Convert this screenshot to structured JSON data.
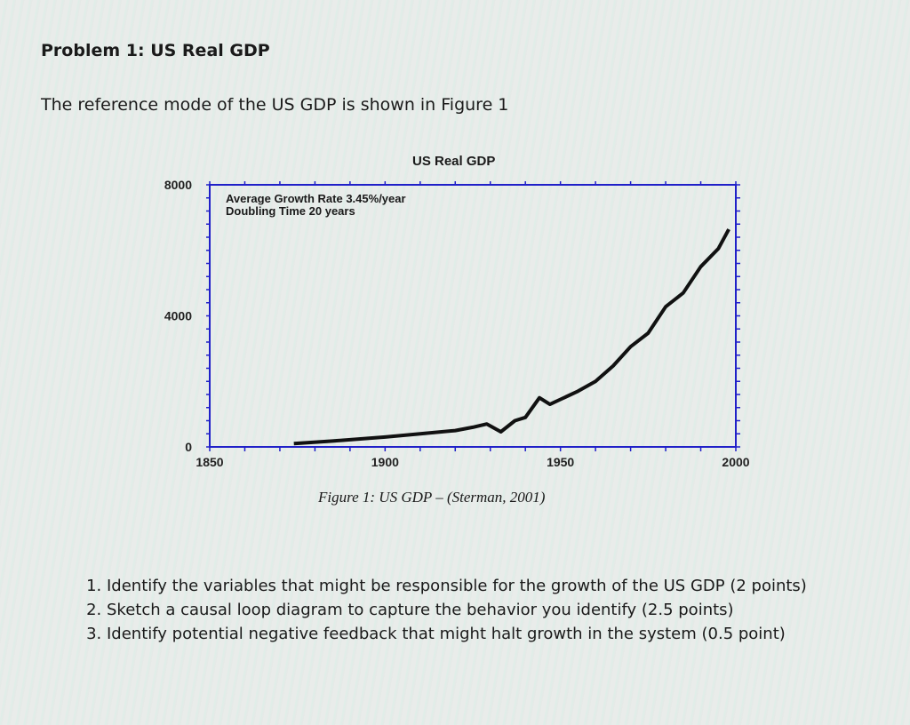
{
  "heading": "Problem 1: US Real GDP",
  "intro": "The reference mode of the US GDP is shown in Figure 1",
  "chart_data": {
    "type": "line",
    "title": "US Real GDP",
    "xlabel": "",
    "ylabel": "",
    "xlim": [
      1850,
      2000
    ],
    "ylim": [
      0,
      8000
    ],
    "x_ticks": [
      "1850",
      "1900",
      "1950",
      "2000"
    ],
    "y_ticks": [
      "0",
      "4000",
      "8000"
    ],
    "annotations": [
      "Average Growth Rate 3.45%/year",
      "Doubling Time 20 years"
    ],
    "line_color": "#111111",
    "axis_color": "#2020c8",
    "x": [
      1874,
      1885,
      1900,
      1910,
      1920,
      1925,
      1929,
      1933,
      1937,
      1940,
      1944,
      1947,
      1950,
      1955,
      1960,
      1965,
      1970,
      1975,
      1980,
      1985,
      1990,
      1995,
      1998
    ],
    "y": [
      100,
      180,
      300,
      400,
      500,
      600,
      700,
      460,
      800,
      900,
      1500,
      1300,
      1450,
      1700,
      2000,
      2470,
      3060,
      3470,
      4280,
      4700,
      5500,
      6050,
      6640
    ]
  },
  "caption": "Figure 1: US GDP – (Sterman, 2001)",
  "questions": [
    "Identify the variables that might be responsible for the growth of the US GDP (2 points)",
    "Sketch a causal loop diagram to capture the behavior you identify (2.5 points)",
    "Identify potential negative feedback that might halt growth in the system (0.5 point)"
  ]
}
